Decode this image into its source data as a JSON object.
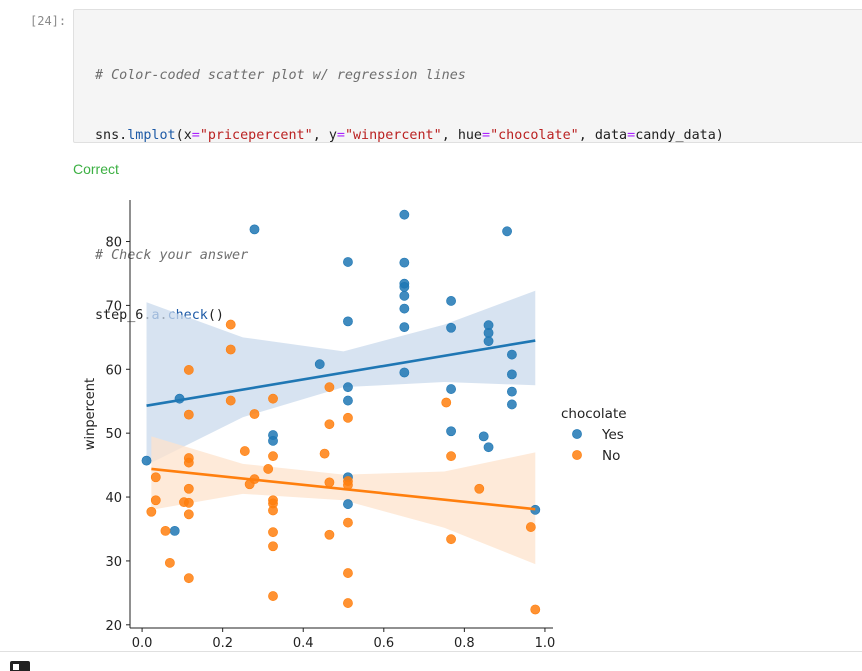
{
  "cell": {
    "prompt": "[24]:",
    "code": {
      "comment1": "# Color-coded scatter plot w/ regression lines",
      "call_prefix": "sns.",
      "call_fn": "lmplot",
      "x_kw": "x",
      "x_val": "\"pricepercent\"",
      "y_kw": "y",
      "y_val": "\"winpercent\"",
      "hue_kw": "hue",
      "hue_val": "\"chocolate\"",
      "data_kw": "data",
      "data_val": "candy_data)",
      "comment2": "# Check your answer",
      "check_prefix": "step_6.",
      "check_obj": "a",
      "check_fn": "check",
      "check_suffix": "()"
    },
    "status_text": "Correct"
  },
  "colors": {
    "yes": "#1f77b4",
    "no": "#ff7f0e",
    "yes_band": "#c9daec",
    "no_band": "#fde3cc",
    "status": "#3cb043"
  },
  "chart_data": {
    "type": "scatter",
    "title": "",
    "xlabel": "",
    "ylabel": "winpercent",
    "xlim": [
      -0.03,
      1.02
    ],
    "ylim": [
      19.5,
      86.5
    ],
    "xticks": [
      0.0,
      0.2,
      0.4,
      0.6,
      0.8,
      1.0
    ],
    "xtick_labels": [
      "0.0",
      "0.2",
      "0.4",
      "0.6",
      "0.8",
      "1.0"
    ],
    "yticks": [
      20,
      30,
      40,
      50,
      60,
      70,
      80
    ],
    "ytick_labels": [
      "20",
      "30",
      "40",
      "50",
      "60",
      "70",
      "80"
    ],
    "legend": {
      "title": "chocolate",
      "position": "right",
      "entries": [
        "Yes",
        "No"
      ]
    },
    "series": [
      {
        "name": "Yes",
        "points": [
          [
            0.011,
            45.7
          ],
          [
            0.081,
            34.7
          ],
          [
            0.093,
            55.4
          ],
          [
            0.279,
            81.9
          ],
          [
            0.325,
            49.7
          ],
          [
            0.325,
            48.8
          ],
          [
            0.441,
            60.8
          ],
          [
            0.511,
            76.8
          ],
          [
            0.511,
            67.5
          ],
          [
            0.511,
            57.2
          ],
          [
            0.511,
            55.1
          ],
          [
            0.511,
            43.1
          ],
          [
            0.511,
            38.9
          ],
          [
            0.651,
            84.2
          ],
          [
            0.651,
            76.7
          ],
          [
            0.651,
            73.4
          ],
          [
            0.651,
            72.9
          ],
          [
            0.651,
            71.5
          ],
          [
            0.651,
            69.5
          ],
          [
            0.651,
            66.6
          ],
          [
            0.651,
            59.5
          ],
          [
            0.767,
            70.7
          ],
          [
            0.767,
            66.5
          ],
          [
            0.767,
            56.9
          ],
          [
            0.767,
            50.3
          ],
          [
            0.848,
            49.5
          ],
          [
            0.86,
            66.9
          ],
          [
            0.86,
            65.7
          ],
          [
            0.86,
            64.4
          ],
          [
            0.86,
            47.8
          ],
          [
            0.906,
            81.6
          ],
          [
            0.918,
            62.3
          ],
          [
            0.918,
            59.2
          ],
          [
            0.918,
            56.5
          ],
          [
            0.918,
            54.5
          ],
          [
            0.976,
            38.0
          ]
        ],
        "regression": {
          "x0": 0.011,
          "y0": 54.3,
          "x1": 0.976,
          "y1": 64.5
        },
        "ci_band": [
          {
            "x": 0.011,
            "lo": 45.0,
            "hi": 70.5
          },
          {
            "x": 0.25,
            "lo": 52.5,
            "hi": 65.0
          },
          {
            "x": 0.5,
            "lo": 57.2,
            "hi": 62.8
          },
          {
            "x": 0.75,
            "lo": 58.0,
            "hi": 67.0
          },
          {
            "x": 0.976,
            "lo": 57.5,
            "hi": 72.3
          }
        ]
      },
      {
        "name": "No",
        "points": [
          [
            0.023,
            37.7
          ],
          [
            0.034,
            43.1
          ],
          [
            0.034,
            39.5
          ],
          [
            0.058,
            34.7
          ],
          [
            0.069,
            29.7
          ],
          [
            0.104,
            39.2
          ],
          [
            0.116,
            59.9
          ],
          [
            0.116,
            52.9
          ],
          [
            0.116,
            46.1
          ],
          [
            0.116,
            45.4
          ],
          [
            0.116,
            41.3
          ],
          [
            0.116,
            39.1
          ],
          [
            0.116,
            37.3
          ],
          [
            0.116,
            27.3
          ],
          [
            0.22,
            67.0
          ],
          [
            0.22,
            63.1
          ],
          [
            0.22,
            55.1
          ],
          [
            0.255,
            47.2
          ],
          [
            0.267,
            42.0
          ],
          [
            0.279,
            53.0
          ],
          [
            0.279,
            42.8
          ],
          [
            0.313,
            44.4
          ],
          [
            0.325,
            55.4
          ],
          [
            0.325,
            46.4
          ],
          [
            0.325,
            39.5
          ],
          [
            0.325,
            39.0
          ],
          [
            0.325,
            37.9
          ],
          [
            0.325,
            34.5
          ],
          [
            0.325,
            32.3
          ],
          [
            0.325,
            24.5
          ],
          [
            0.453,
            46.8
          ],
          [
            0.465,
            57.2
          ],
          [
            0.465,
            51.4
          ],
          [
            0.465,
            42.3
          ],
          [
            0.465,
            34.1
          ],
          [
            0.511,
            52.4
          ],
          [
            0.511,
            42.5
          ],
          [
            0.511,
            41.9
          ],
          [
            0.511,
            36.0
          ],
          [
            0.511,
            28.1
          ],
          [
            0.511,
            23.4
          ],
          [
            0.755,
            54.8
          ],
          [
            0.767,
            46.4
          ],
          [
            0.767,
            33.4
          ],
          [
            0.837,
            41.3
          ],
          [
            0.965,
            35.3
          ],
          [
            0.976,
            22.4
          ]
        ],
        "regression": {
          "x0": 0.023,
          "y0": 44.4,
          "x1": 0.976,
          "y1": 38.1
        },
        "ci_band": [
          {
            "x": 0.023,
            "lo": 38.0,
            "hi": 49.5
          },
          {
            "x": 0.25,
            "lo": 40.5,
            "hi": 45.2
          },
          {
            "x": 0.5,
            "lo": 39.5,
            "hi": 43.5
          },
          {
            "x": 0.75,
            "lo": 35.2,
            "hi": 44.0
          },
          {
            "x": 0.976,
            "lo": 29.5,
            "hi": 47.0
          }
        ]
      }
    ]
  }
}
